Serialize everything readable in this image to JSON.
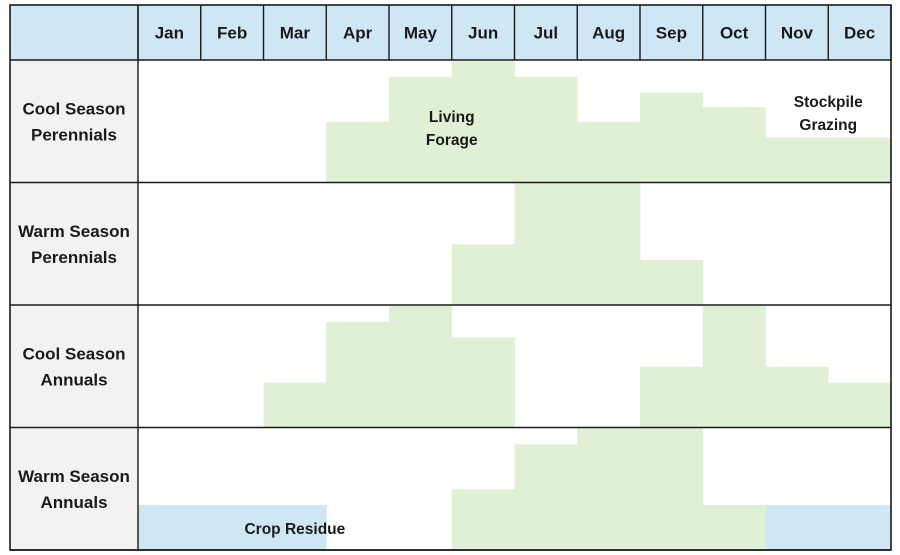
{
  "chart_data": {
    "type": "area",
    "subtype": "seasonal-forage-availability-grid",
    "months": [
      "Jan",
      "Feb",
      "Mar",
      "Apr",
      "May",
      "Jun",
      "Jul",
      "Aug",
      "Sep",
      "Oct",
      "Nov",
      "Dec"
    ],
    "ylim": [
      0,
      1
    ],
    "rows": [
      {
        "label_lines": [
          "Cool Season",
          "Perennials"
        ],
        "living_forage": [
          0,
          0,
          0,
          0.5,
          0.87,
          1.0,
          0.87,
          0.5,
          0.74,
          0.62,
          0.37,
          0.37
        ],
        "stockpile_grazing": [
          0,
          0,
          0,
          0,
          0,
          0,
          0,
          0,
          0,
          0,
          0,
          0
        ],
        "crop_residue": [
          0,
          0,
          0,
          0,
          0,
          0,
          0,
          0,
          0,
          0,
          0,
          0
        ]
      },
      {
        "label_lines": [
          "Warm Season",
          "Perennials"
        ],
        "living_forage": [
          0,
          0,
          0,
          0,
          0,
          0.5,
          1.0,
          1.0,
          0.37,
          0,
          0,
          0
        ],
        "stockpile_grazing": [
          0,
          0,
          0,
          0,
          0,
          0,
          0,
          0,
          0,
          0,
          0,
          0
        ],
        "crop_residue": [
          0,
          0,
          0,
          0,
          0,
          0,
          0,
          0,
          0,
          0,
          0,
          0
        ]
      },
      {
        "label_lines": [
          "Cool Season",
          "Annuals"
        ],
        "living_forage": [
          0,
          0,
          0.37,
          0.87,
          1.0,
          0.74,
          0,
          0,
          0.5,
          1.0,
          0.5,
          0.37
        ],
        "stockpile_grazing": [
          0,
          0,
          0,
          0,
          0,
          0,
          0,
          0,
          0,
          0,
          0,
          0
        ],
        "crop_residue": [
          0,
          0,
          0,
          0,
          0,
          0,
          0,
          0,
          0,
          0,
          0,
          0
        ]
      },
      {
        "label_lines": [
          "Warm Season",
          "Annuals"
        ],
        "living_forage": [
          0,
          0,
          0,
          0,
          0,
          0.5,
          0.87,
          1.0,
          1.0,
          0.37,
          0,
          0
        ],
        "stockpile_grazing": [
          0,
          0,
          0,
          0,
          0,
          0,
          0,
          0,
          0,
          0,
          0,
          0
        ],
        "crop_residue": [
          0.37,
          0.37,
          0.37,
          0,
          0,
          0,
          0,
          0,
          0,
          0,
          0.37,
          0.37
        ]
      }
    ],
    "annotations": [
      {
        "row": 0,
        "lines": [
          "Living",
          "Forage"
        ],
        "month_center": 5
      },
      {
        "row": 0,
        "lines": [
          "Stockpile",
          "Grazing"
        ],
        "month_center": 11
      },
      {
        "row": 3,
        "lines": [
          "Crop Residue"
        ],
        "month_center": 2
      }
    ],
    "colors": {
      "header_fill": "#cfe7f5",
      "row_label_fill": "#f2f2f2",
      "living_forage": "#dff0d5",
      "crop_residue": "#cfe7f5",
      "grid_line": "#1a1a1a"
    }
  }
}
